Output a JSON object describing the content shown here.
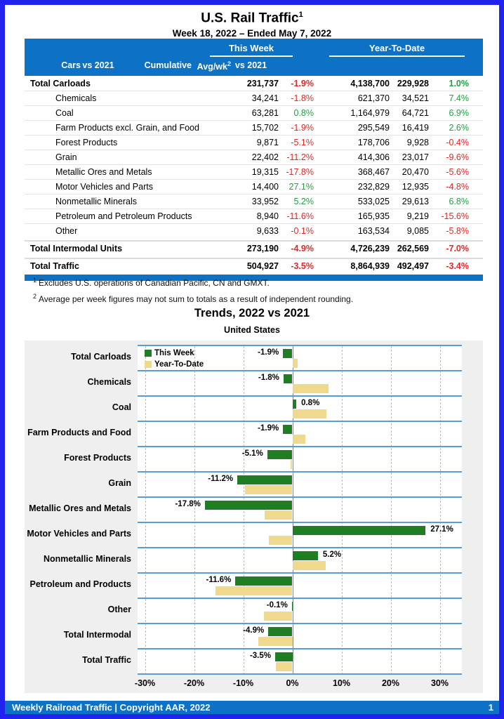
{
  "page": {
    "title": "U.S. Rail Traffic",
    "title_sup": "1",
    "subtitle": "Week 18, 2022 – Ended May 7, 2022",
    "footer_left": "Weekly Railroad Traffic | Copyright AAR, 2022",
    "page_number": "1"
  },
  "colors": {
    "frame_blue": "#2222ee",
    "header_blue": "#0d72c6",
    "band_separator_blue": "#5b9bd5",
    "this_week_green": "#1f7e23",
    "ytd_tan": "#f0d88c",
    "negative_red": "#e02828",
    "positive_green": "#1fa045",
    "figure_gray": "#efefef"
  },
  "table": {
    "group_headers": {
      "this_week": "This Week",
      "ytd": "Year-To-Date"
    },
    "columns": {
      "cars": "Cars",
      "vs_tw": "vs 2021",
      "cumulative": "Cumulative",
      "avg_wk": "Avg/wk",
      "avg_wk_sup": "2",
      "vs_ytd": "vs 2021"
    },
    "rows": [
      {
        "label": "Total Carloads",
        "bold": true,
        "indent": false,
        "gap": false,
        "cars": "231,737",
        "vs_tw": "-1.9%",
        "cumulative": "4,138,700",
        "avg_wk": "229,928",
        "vs_ytd": "1.0%"
      },
      {
        "label": "Chemicals",
        "bold": false,
        "indent": true,
        "gap": false,
        "cars": "34,241",
        "vs_tw": "-1.8%",
        "cumulative": "621,370",
        "avg_wk": "34,521",
        "vs_ytd": "7.4%"
      },
      {
        "label": "Coal",
        "bold": false,
        "indent": true,
        "gap": false,
        "cars": "63,281",
        "vs_tw": "0.8%",
        "cumulative": "1,164,979",
        "avg_wk": "64,721",
        "vs_ytd": "6.9%"
      },
      {
        "label": "Farm Products excl. Grain, and Food",
        "bold": false,
        "indent": true,
        "gap": false,
        "cars": "15,702",
        "vs_tw": "-1.9%",
        "cumulative": "295,549",
        "avg_wk": "16,419",
        "vs_ytd": "2.6%"
      },
      {
        "label": "Forest Products",
        "bold": false,
        "indent": true,
        "gap": false,
        "cars": "9,871",
        "vs_tw": "-5.1%",
        "cumulative": "178,706",
        "avg_wk": "9,928",
        "vs_ytd": "-0.4%"
      },
      {
        "label": "Grain",
        "bold": false,
        "indent": true,
        "gap": false,
        "cars": "22,402",
        "vs_tw": "-11.2%",
        "cumulative": "414,306",
        "avg_wk": "23,017",
        "vs_ytd": "-9.6%"
      },
      {
        "label": "Metallic Ores and Metals",
        "bold": false,
        "indent": true,
        "gap": false,
        "cars": "19,315",
        "vs_tw": "-17.8%",
        "cumulative": "368,467",
        "avg_wk": "20,470",
        "vs_ytd": "-5.6%"
      },
      {
        "label": "Motor Vehicles and Parts",
        "bold": false,
        "indent": true,
        "gap": false,
        "cars": "14,400",
        "vs_tw": "27.1%",
        "cumulative": "232,829",
        "avg_wk": "12,935",
        "vs_ytd": "-4.8%"
      },
      {
        "label": "Nonmetallic Minerals",
        "bold": false,
        "indent": true,
        "gap": false,
        "cars": "33,952",
        "vs_tw": "5.2%",
        "cumulative": "533,025",
        "avg_wk": "29,613",
        "vs_ytd": "6.8%"
      },
      {
        "label": "Petroleum and Petroleum Products",
        "bold": false,
        "indent": true,
        "gap": false,
        "cars": "8,940",
        "vs_tw": "-11.6%",
        "cumulative": "165,935",
        "avg_wk": "9,219",
        "vs_ytd": "-15.6%"
      },
      {
        "label": "Other",
        "bold": false,
        "indent": true,
        "gap": false,
        "cars": "9,633",
        "vs_tw": "-0.1%",
        "cumulative": "163,534",
        "avg_wk": "9,085",
        "vs_ytd": "-5.8%"
      },
      {
        "label": "Total Intermodal Units",
        "bold": true,
        "indent": false,
        "gap": true,
        "cars": "273,190",
        "vs_tw": "-4.9%",
        "cumulative": "4,726,239",
        "avg_wk": "262,569",
        "vs_ytd": "-7.0%"
      },
      {
        "label": "Total Traffic",
        "bold": true,
        "indent": false,
        "gap": true,
        "cars": "504,927",
        "vs_tw": "-3.5%",
        "cumulative": "8,864,939",
        "avg_wk": "492,497",
        "vs_ytd": "-3.4%"
      }
    ]
  },
  "footnotes": [
    {
      "sup": "1",
      "text": "Excludes U.S. operations of Canadian Pacific, CN and GMXT."
    },
    {
      "sup": "2",
      "text": "Average per week figures may not sum to totals as a result of independent rounding."
    }
  ],
  "chart_data": {
    "type": "bar",
    "orientation": "horizontal",
    "title": "Trends, 2022 vs 2021",
    "subtitle": "United States",
    "legend_position": "top-left-inside",
    "grid": "dashed-vertical-10pct",
    "xlim": [
      -31.5,
      34.5
    ],
    "xticks": [
      -30,
      -20,
      -10,
      0,
      10,
      20,
      30
    ],
    "xtick_labels": [
      "-30%",
      "-20%",
      "-10%",
      "0%",
      "10%",
      "20%",
      "30%"
    ],
    "categories": [
      "Total Carloads",
      "Chemicals",
      "Coal",
      "Farm Products and Food",
      "Forest Products",
      "Grain",
      "Metallic Ores and Metals",
      "Motor Vehicles and Parts",
      "Nonmetallic Minerals",
      "Petroleum and Products",
      "Other",
      "Total Intermodal",
      "Total Traffic"
    ],
    "series": [
      {
        "name": "This Week",
        "color": "#1f7e23",
        "values": [
          -1.9,
          -1.8,
          0.8,
          -1.9,
          -5.1,
          -11.2,
          -17.8,
          27.1,
          5.2,
          -11.6,
          -0.1,
          -4.9,
          -3.5
        ]
      },
      {
        "name": "Year-To-Date",
        "color": "#f0d88c",
        "values": [
          1.0,
          7.4,
          6.9,
          2.6,
          -0.4,
          -9.6,
          -5.6,
          -4.8,
          6.8,
          -15.6,
          -5.8,
          -7.0,
          -3.4
        ]
      }
    ],
    "bar_labels": [
      "-1.9%",
      "-1.8%",
      "0.8%",
      "-1.9%",
      "-5.1%",
      "-11.2%",
      "-17.8%",
      "27.1%",
      "5.2%",
      "-11.6%",
      "-0.1%",
      "-4.9%",
      "-3.5%"
    ]
  }
}
